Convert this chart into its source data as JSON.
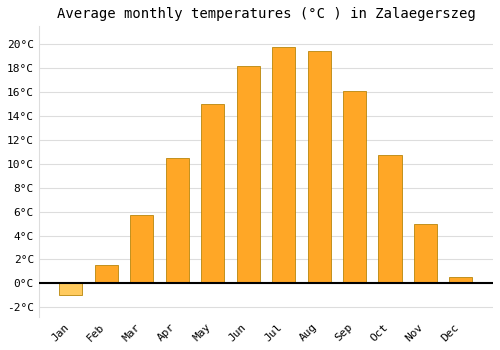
{
  "months": [
    "Jan",
    "Feb",
    "Mar",
    "Apr",
    "May",
    "Jun",
    "Jul",
    "Aug",
    "Sep",
    "Oct",
    "Nov",
    "Dec"
  ],
  "temperatures": [
    -1.0,
    1.5,
    5.7,
    10.5,
    15.0,
    18.2,
    19.8,
    19.4,
    16.1,
    10.7,
    5.0,
    0.5
  ],
  "bar_color_positive": "#FFA726",
  "bar_color_negative": "#FFCA5E",
  "bar_edge_color": "#B8860B",
  "title": "Average monthly temperatures (°C ) in Zalaegerszeg",
  "ytick_values": [
    -2,
    0,
    2,
    4,
    6,
    8,
    10,
    12,
    14,
    16,
    18,
    20
  ],
  "ylabel_ticks": [
    "-2°C",
    "0°C",
    "2°C",
    "4°C",
    "6°C",
    "8°C",
    "10°C",
    "12°C",
    "14°C",
    "16°C",
    "18°C",
    "20°C"
  ],
  "ylim": [
    -2.8,
    21.5
  ],
  "background_color": "#FFFFFF",
  "grid_color": "#DDDDDD",
  "title_fontsize": 10,
  "tick_fontsize": 8
}
